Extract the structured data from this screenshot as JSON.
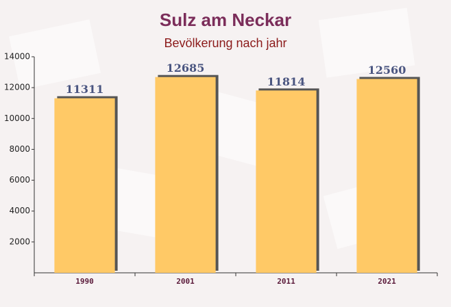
{
  "chart_data": {
    "type": "bar",
    "title": "Sulz am Neckar",
    "subtitle": "Bevölkerung nach jahr",
    "categories": [
      "1990",
      "2001",
      "2011",
      "2021"
    ],
    "values": [
      11311,
      12685,
      11814,
      12560
    ],
    "color": "#ffc966",
    "ylim": [
      0,
      14000
    ],
    "yticks": [
      2000,
      4000,
      6000,
      8000,
      10000,
      12000,
      14000
    ]
  }
}
